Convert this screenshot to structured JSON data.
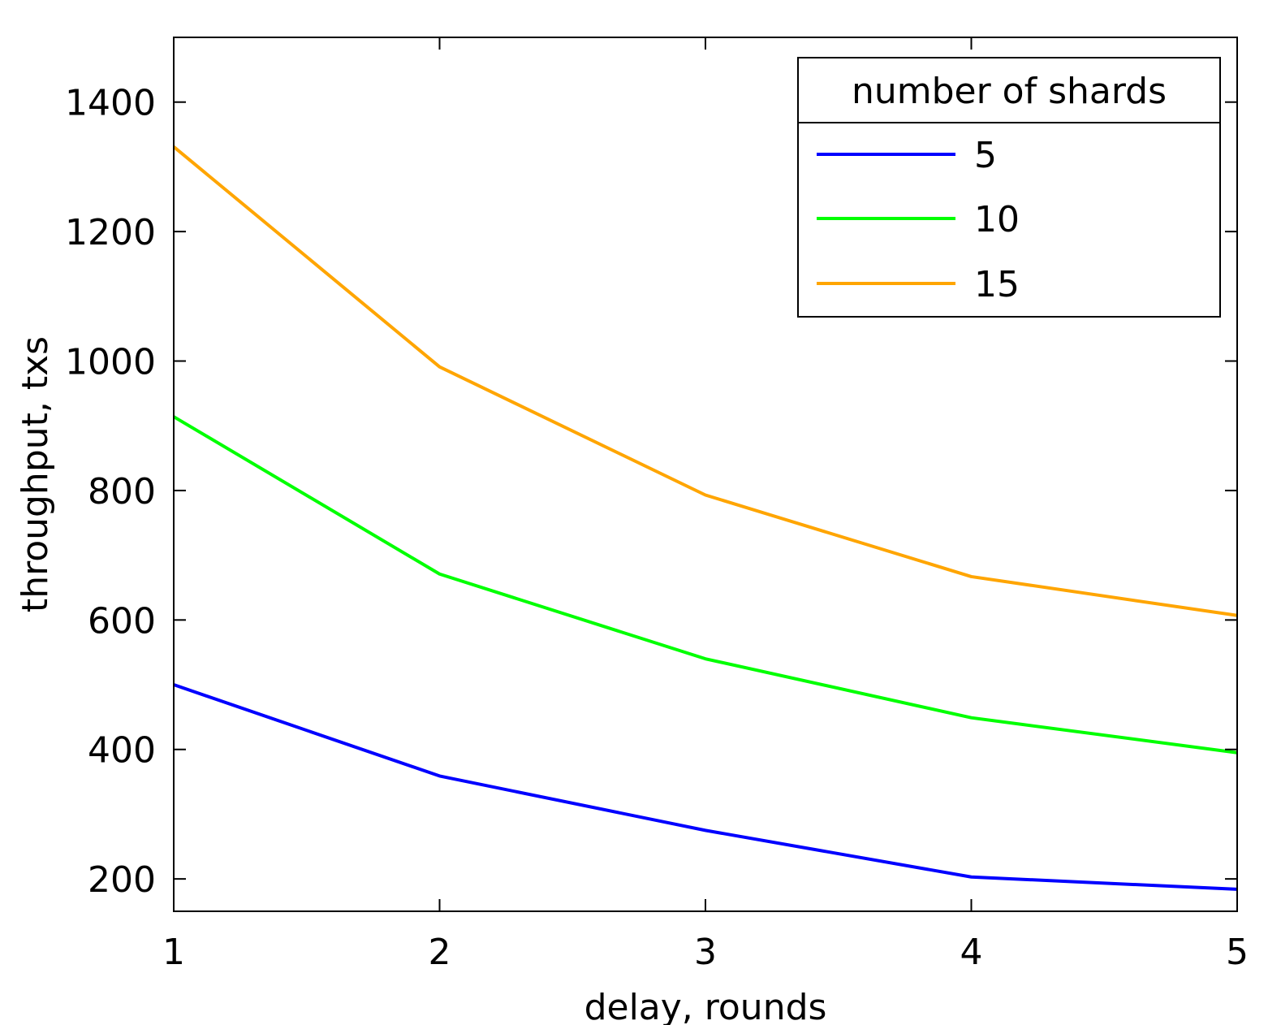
{
  "chart_data": {
    "type": "line",
    "xlabel": "delay, rounds",
    "ylabel": "throughput, txs",
    "x": [
      1,
      2,
      3,
      4,
      5
    ],
    "xticks": [
      1,
      2,
      3,
      4,
      5
    ],
    "yticks": [
      200,
      400,
      600,
      800,
      1000,
      1200,
      1400
    ],
    "xlim": [
      1,
      5
    ],
    "ylim": [
      150,
      1500
    ],
    "grid": false,
    "legend": {
      "title": "number of shards",
      "placement": "top-right"
    },
    "series": [
      {
        "name": "5",
        "color": "#0000ff",
        "values": [
          500,
          359,
          275,
          203,
          184
        ]
      },
      {
        "name": "10",
        "color": "#00ff00",
        "values": [
          914,
          671,
          540,
          449,
          395
        ]
      },
      {
        "name": "15",
        "color": "#ffa500",
        "values": [
          1331,
          991,
          793,
          667,
          607
        ]
      }
    ]
  }
}
